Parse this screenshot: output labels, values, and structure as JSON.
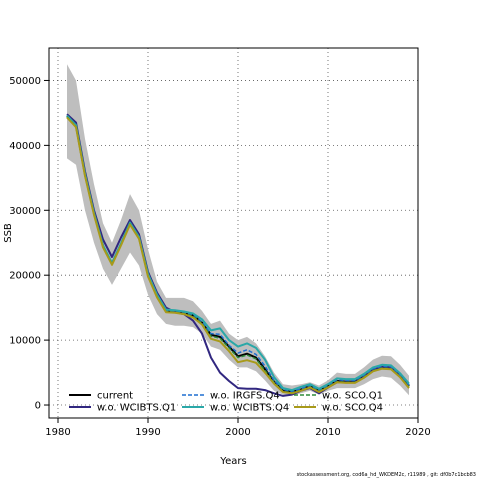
{
  "chart_data": {
    "type": "line",
    "xlabel": "Years",
    "ylabel": "SSB",
    "xlim": [
      1979,
      2020
    ],
    "ylim": [
      -2000,
      55000
    ],
    "xticks": [
      1980,
      1990,
      2000,
      2010,
      2020
    ],
    "yticks": [
      0,
      10000,
      20000,
      30000,
      40000,
      50000
    ],
    "grid": true,
    "legend_position": "bottom-left",
    "x": [
      1981,
      1982,
      1983,
      1984,
      1985,
      1986,
      1987,
      1988,
      1989,
      1990,
      1991,
      1992,
      1993,
      1994,
      1995,
      1996,
      1997,
      1998,
      1999,
      2000,
      2001,
      2002,
      2003,
      2004,
      2005,
      2006,
      2007,
      2008,
      2009,
      2010,
      2011,
      2012,
      2013,
      2014,
      2015,
      2016,
      2017,
      2018,
      2019
    ],
    "band_upper": [
      52500,
      50000,
      41000,
      34000,
      28000,
      25000,
      28500,
      32500,
      30000,
      24000,
      19000,
      16500,
      16500,
      16500,
      16000,
      14500,
      12500,
      13000,
      11000,
      10000,
      10500,
      9500,
      7500,
      5000,
      3200,
      3000,
      3200,
      3500,
      3000,
      3800,
      5000,
      4800,
      4800,
      5800,
      7000,
      7600,
      7500,
      6200,
      4500
    ],
    "band_lower": [
      38000,
      37000,
      30000,
      25000,
      21000,
      18500,
      21000,
      23500,
      21500,
      17000,
      14000,
      12500,
      12200,
      12200,
      12000,
      11000,
      9000,
      8500,
      7000,
      5800,
      5800,
      5200,
      3800,
      2200,
      1600,
      1500,
      1800,
      2200,
      1600,
      2200,
      2600,
      2600,
      2600,
      3200,
      4000,
      4400,
      4200,
      3000,
      1500
    ],
    "series": [
      {
        "name": "current",
        "color": "#000000",
        "dash": "solid",
        "width": 2,
        "values": [
          44500,
          43000,
          35500,
          29500,
          24500,
          21800,
          24800,
          28000,
          25800,
          20000,
          16800,
          14500,
          14400,
          14200,
          13800,
          12700,
          10800,
          10500,
          9000,
          7500,
          7900,
          7300,
          5500,
          3600,
          2200,
          2000,
          2400,
          2900,
          2200,
          2900,
          3700,
          3600,
          3600,
          4400,
          5400,
          5800,
          5700,
          4500,
          2900
        ]
      },
      {
        "name": "w.o. WCIBTS.Q1",
        "color": "#312780",
        "dash": "solid",
        "width": 2,
        "values": [
          44800,
          43500,
          36000,
          30000,
          25500,
          22800,
          25800,
          28500,
          26300,
          20500,
          17300,
          15000,
          14300,
          14000,
          13000,
          11000,
          7300,
          5000,
          3700,
          2600,
          2500,
          2500,
          2300,
          1800,
          1400,
          1600,
          2200,
          2600,
          1800,
          2700,
          3500,
          3500,
          3500,
          4300,
          5400,
          5900,
          5800,
          4600,
          3000
        ]
      },
      {
        "name": "w.o. IRGFS.Q4",
        "color": "#1f6fd1",
        "dash": "dashed",
        "width": 1.5,
        "values": [
          44500,
          43000,
          35500,
          29500,
          24500,
          21800,
          24800,
          28000,
          25800,
          20000,
          16800,
          14500,
          14400,
          14200,
          13900,
          12800,
          11000,
          10900,
          9200,
          8000,
          8500,
          7800,
          6000,
          3800,
          2400,
          2100,
          2500,
          3000,
          2300,
          3000,
          3900,
          3800,
          3800,
          4600,
          5600,
          6000,
          5900,
          4700,
          3100
        ]
      },
      {
        "name": "w.o. WCIBTS.Q4",
        "color": "#2aa8a8",
        "dash": "solid",
        "width": 2,
        "values": [
          44600,
          43100,
          35600,
          29600,
          24600,
          21900,
          24900,
          28100,
          25900,
          20200,
          17000,
          14700,
          14600,
          14400,
          14100,
          13200,
          11500,
          11800,
          10000,
          9000,
          9500,
          8800,
          7000,
          4300,
          2600,
          2300,
          2800,
          3200,
          2500,
          3200,
          4100,
          4000,
          4000,
          4800,
          5800,
          6200,
          6100,
          4900,
          3300
        ]
      },
      {
        "name": "w.o. SCO.Q1",
        "color": "#2e8b3a",
        "dash": "dashed",
        "width": 1.5,
        "values": [
          44400,
          42900,
          35400,
          29400,
          24400,
          21700,
          24700,
          27900,
          25700,
          19900,
          16700,
          14400,
          14300,
          14100,
          13700,
          12600,
          10600,
          10300,
          8800,
          7300,
          7700,
          7100,
          5300,
          3500,
          2100,
          1900,
          2300,
          2800,
          2100,
          2800,
          3600,
          3500,
          3500,
          4300,
          5300,
          5700,
          5600,
          4400,
          2800
        ]
      },
      {
        "name": "w.o. SCO.Q4",
        "color": "#a89a1a",
        "dash": "solid",
        "width": 2,
        "values": [
          44300,
          42800,
          35300,
          29300,
          24300,
          21600,
          24600,
          27800,
          25600,
          19800,
          16600,
          14300,
          14200,
          14000,
          13500,
          12400,
          10200,
          9800,
          8300,
          6600,
          6900,
          6500,
          5000,
          3300,
          2000,
          1800,
          2200,
          2700,
          2000,
          2700,
          3500,
          3400,
          3400,
          4200,
          5200,
          5600,
          5500,
          4300,
          2600
        ]
      }
    ],
    "band_color": "#bebebe"
  },
  "footer": "stockassessment.org, cod6a_hd_WKDEM2c, r11989 , git: df0b7c1bcb83"
}
